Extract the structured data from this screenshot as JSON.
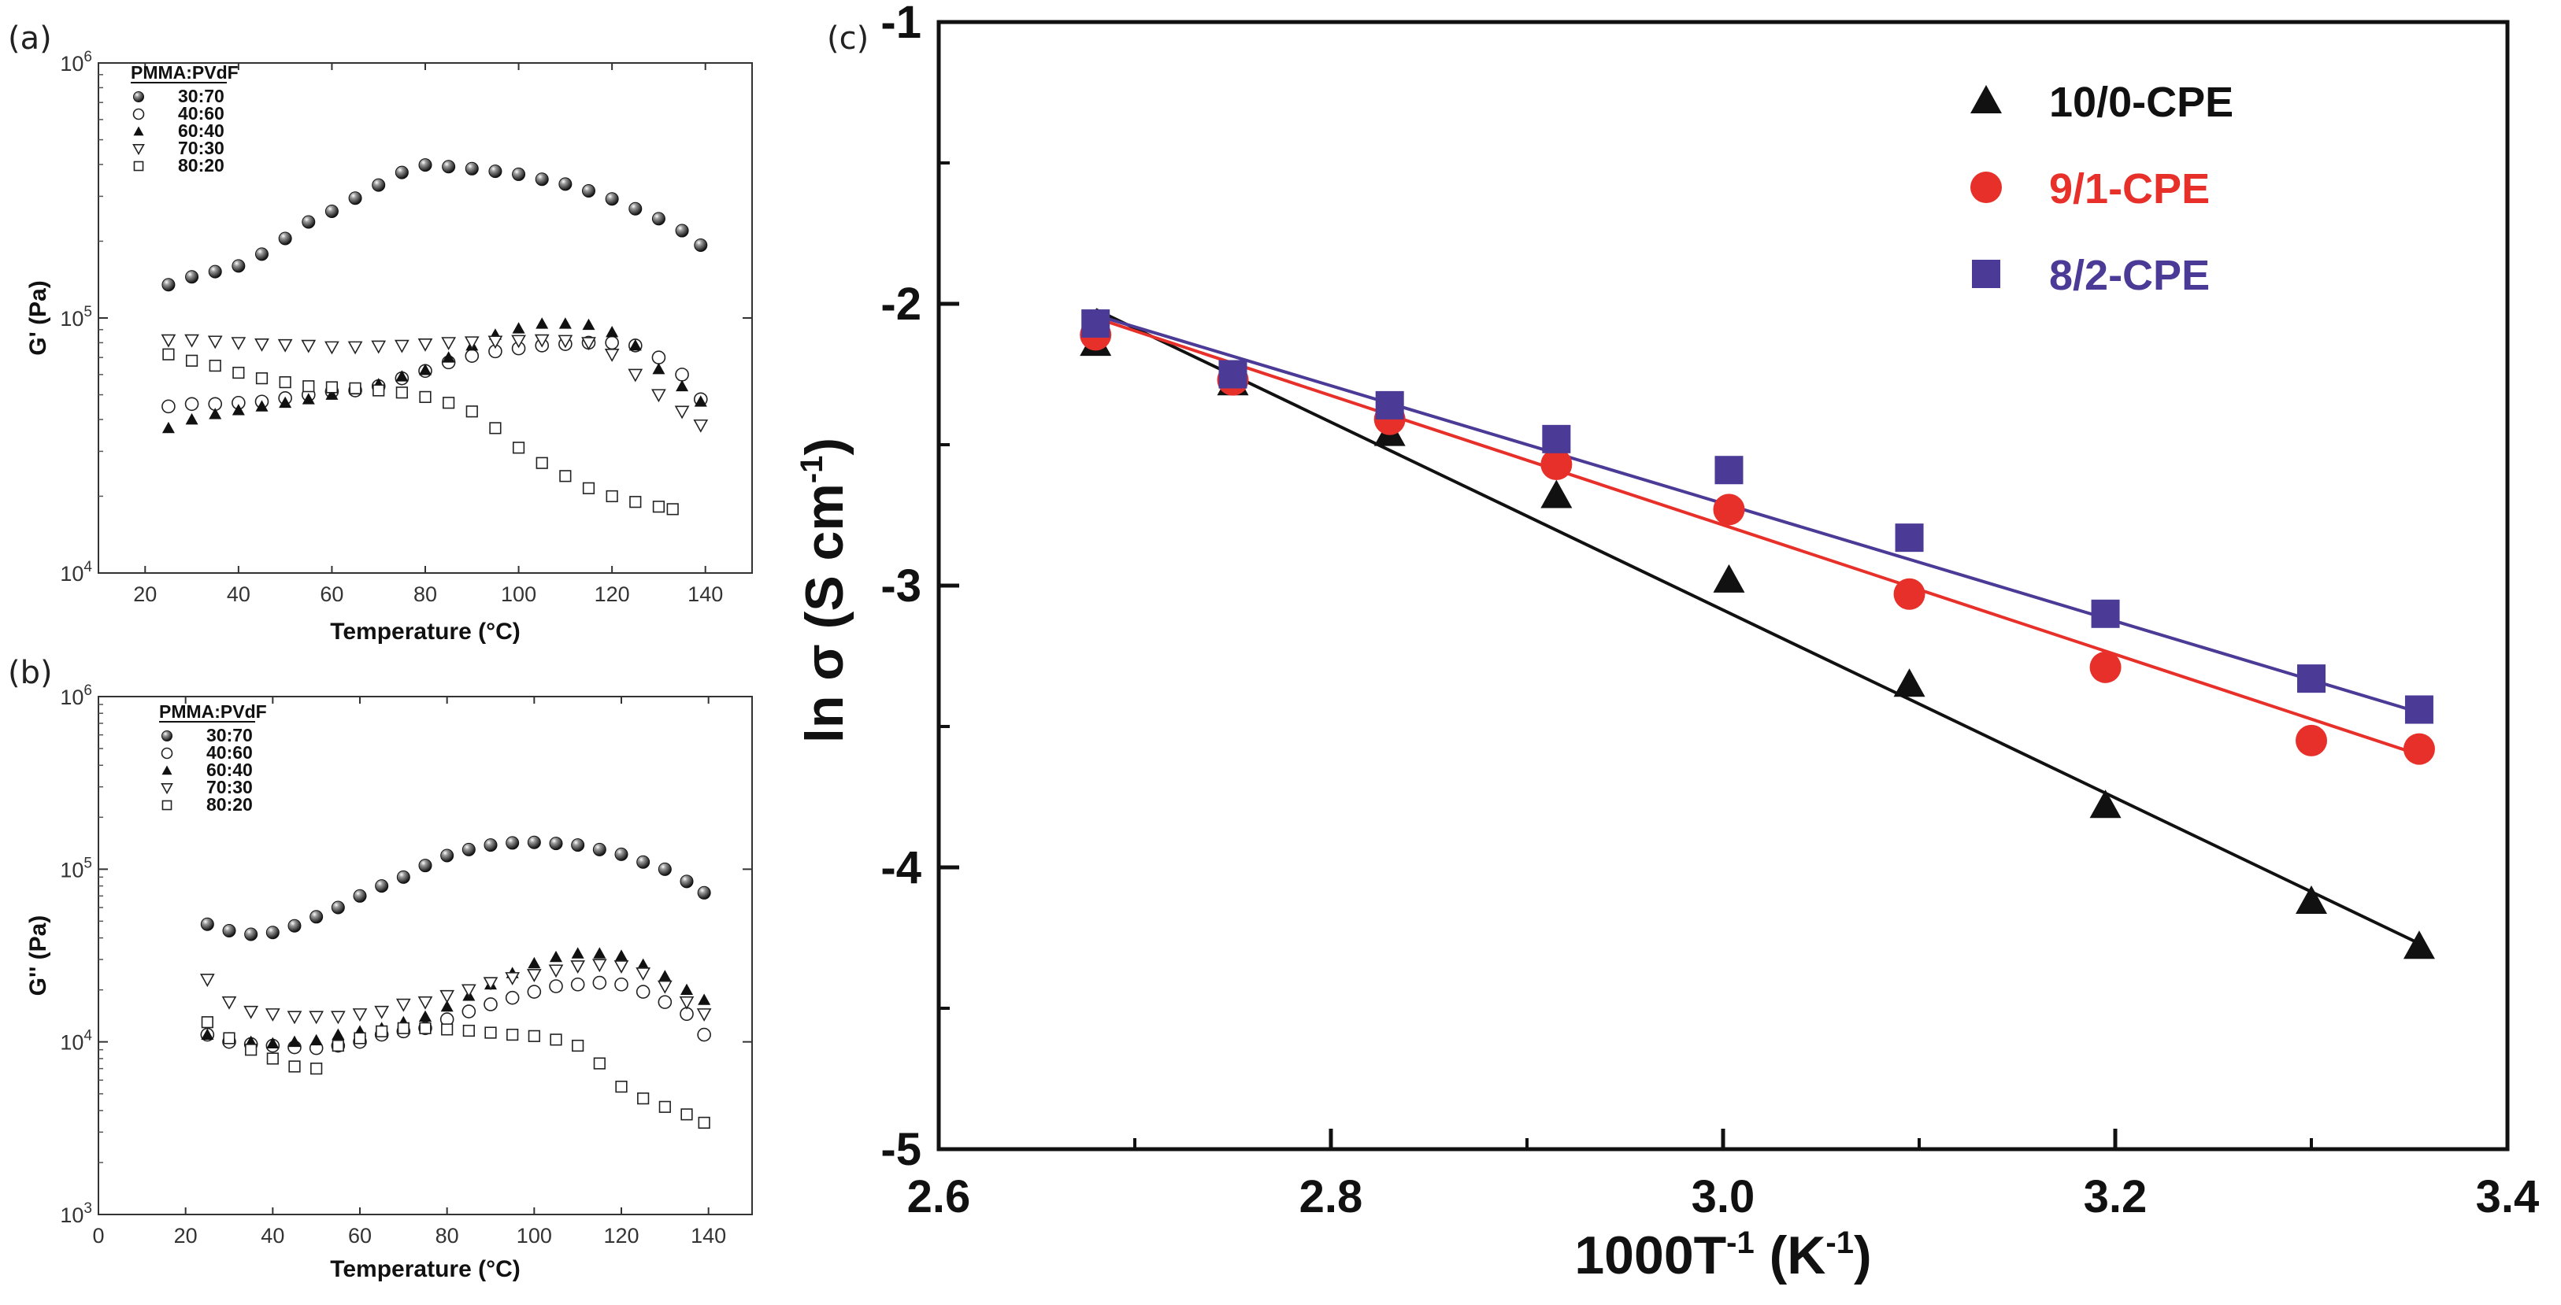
{
  "chart_data": [
    {
      "id": "a",
      "panel_label": "(a)",
      "type": "scatter",
      "ylog": true,
      "xlim": [
        10,
        150
      ],
      "ylim": [
        10000,
        1000000
      ],
      "xticks": [
        20,
        40,
        60,
        80,
        100,
        120,
        140
      ],
      "ytick_base": "10",
      "yticks": [
        {
          "value": 10000,
          "exp": "4"
        },
        {
          "value": 100000,
          "exp": "5"
        },
        {
          "value": 1000000,
          "exp": "6"
        }
      ],
      "xlabel": "Temperature  (°C)",
      "ylabel": "G' (Pa)",
      "legend_title": "PMMA:PVdF",
      "series": [
        {
          "name": "30:70",
          "marker": "sphere",
          "x": [
            25,
            30,
            35,
            40,
            45,
            50,
            55,
            60,
            65,
            70,
            75,
            80,
            85,
            90,
            95,
            100,
            105,
            110,
            115,
            120,
            125,
            130,
            135,
            139
          ],
          "y": [
            135000,
            145000,
            152000,
            160000,
            178000,
            205000,
            238000,
            262000,
            295000,
            332000,
            372000,
            398000,
            392000,
            385000,
            376000,
            366000,
            350000,
            335000,
            315000,
            293000,
            268000,
            245000,
            220000,
            193000
          ]
        },
        {
          "name": "40:60",
          "marker": "circle-open",
          "x": [
            25,
            30,
            35,
            40,
            45,
            50,
            55,
            60,
            65,
            70,
            75,
            80,
            85,
            90,
            95,
            100,
            105,
            110,
            115,
            120,
            125,
            130,
            135,
            139
          ],
          "y": [
            45000,
            46000,
            46000,
            46500,
            47000,
            48500,
            50000,
            51500,
            52000,
            54000,
            58000,
            62000,
            67000,
            71000,
            74000,
            76000,
            78000,
            79000,
            80000,
            80000,
            78000,
            70000,
            60000,
            48000
          ]
        },
        {
          "name": "60:40",
          "marker": "triangle-up-filled",
          "x": [
            25,
            30,
            35,
            40,
            45,
            50,
            55,
            60,
            65,
            70,
            75,
            80,
            85,
            90,
            95,
            100,
            105,
            110,
            115,
            120,
            125,
            130,
            135,
            139
          ],
          "y": [
            37000,
            40000,
            42000,
            43500,
            45000,
            46500,
            48000,
            50000,
            52500,
            55000,
            59000,
            62500,
            70000,
            78000,
            86000,
            91000,
            95000,
            95000,
            94000,
            88000,
            78000,
            63000,
            54000,
            47000
          ]
        },
        {
          "name": "70:30",
          "marker": "triangle-down-open",
          "x": [
            25,
            30,
            35,
            40,
            45,
            50,
            55,
            60,
            65,
            70,
            75,
            80,
            85,
            90,
            95,
            100,
            105,
            110,
            115,
            120,
            125,
            130,
            135,
            139
          ],
          "y": [
            82000,
            82000,
            81000,
            80000,
            79000,
            78500,
            78000,
            77000,
            77000,
            77500,
            78000,
            79000,
            80000,
            80500,
            81000,
            81500,
            82000,
            81500,
            80000,
            72000,
            60000,
            50000,
            43000,
            38000
          ]
        },
        {
          "name": "80:20",
          "marker": "square-open",
          "x": [
            25,
            30,
            35,
            40,
            45,
            50,
            55,
            60,
            65,
            70,
            75,
            80,
            85,
            90,
            95,
            100,
            105,
            110,
            115,
            120,
            125,
            130,
            133
          ],
          "y": [
            72000,
            68000,
            65000,
            61000,
            58000,
            56000,
            54000,
            53500,
            53000,
            52000,
            51000,
            49000,
            46500,
            43000,
            37000,
            31000,
            27000,
            24000,
            21500,
            20000,
            19000,
            18200,
            17800
          ]
        }
      ]
    },
    {
      "id": "b",
      "panel_label": "(b)",
      "type": "scatter",
      "ylog": true,
      "xlim": [
        0,
        150
      ],
      "ylim": [
        1000,
        1000000
      ],
      "xticks": [
        0,
        20,
        40,
        60,
        80,
        100,
        120,
        140
      ],
      "ytick_base": "10",
      "yticks": [
        {
          "value": 1000,
          "exp": "3"
        },
        {
          "value": 10000,
          "exp": "4"
        },
        {
          "value": 100000,
          "exp": "5"
        },
        {
          "value": 1000000,
          "exp": "6"
        }
      ],
      "xlabel": "Temperature  (°C)",
      "ylabel": "G'' (Pa)",
      "legend_title": "PMMA:PVdF",
      "series": [
        {
          "name": "30:70",
          "marker": "sphere",
          "x": [
            25,
            30,
            35,
            40,
            45,
            50,
            55,
            60,
            65,
            70,
            75,
            80,
            85,
            90,
            95,
            100,
            105,
            110,
            115,
            120,
            125,
            130,
            135,
            139
          ],
          "y": [
            48000,
            44000,
            42000,
            43000,
            47000,
            53000,
            60000,
            70000,
            80000,
            90000,
            105000,
            120000,
            130000,
            138000,
            142000,
            143000,
            141000,
            138000,
            130000,
            122000,
            110000,
            100000,
            85000,
            73000
          ]
        },
        {
          "name": "40:60",
          "marker": "circle-open",
          "x": [
            25,
            30,
            35,
            40,
            45,
            50,
            55,
            60,
            65,
            70,
            75,
            80,
            85,
            90,
            95,
            100,
            105,
            110,
            115,
            120,
            125,
            130,
            135,
            139
          ],
          "y": [
            11000,
            10000,
            9700,
            9500,
            9300,
            9200,
            9500,
            10000,
            11000,
            11500,
            12000,
            13500,
            15000,
            16500,
            18000,
            19500,
            21000,
            21500,
            22000,
            21500,
            19500,
            17000,
            14500,
            11000
          ]
        },
        {
          "name": "60:40",
          "marker": "triangle-up-filled",
          "x": [
            25,
            30,
            35,
            40,
            45,
            50,
            55,
            60,
            65,
            70,
            75,
            80,
            85,
            90,
            95,
            100,
            105,
            110,
            115,
            120,
            125,
            130,
            135,
            139
          ],
          "y": [
            11000,
            10500,
            10000,
            9800,
            10000,
            10200,
            11000,
            11500,
            12000,
            13000,
            14000,
            16000,
            18500,
            21500,
            25000,
            28500,
            31000,
            32500,
            32500,
            31500,
            28000,
            24000,
            20000,
            17500
          ]
        },
        {
          "name": "70:30",
          "marker": "triangle-down-open",
          "x": [
            25,
            30,
            35,
            40,
            45,
            50,
            55,
            60,
            65,
            70,
            75,
            80,
            85,
            90,
            95,
            100,
            105,
            110,
            115,
            120,
            125,
            130,
            135,
            139
          ],
          "y": [
            23000,
            17000,
            15000,
            14500,
            14000,
            14000,
            14000,
            14500,
            15000,
            16500,
            17000,
            18500,
            20000,
            22000,
            23500,
            24500,
            26000,
            27500,
            28000,
            27500,
            25000,
            21000,
            17000,
            14500
          ]
        },
        {
          "name": "80:20",
          "marker": "square-open",
          "x": [
            25,
            30,
            35,
            40,
            45,
            50,
            55,
            60,
            65,
            70,
            75,
            80,
            85,
            90,
            95,
            100,
            105,
            110,
            115,
            120,
            125,
            130,
            135,
            139
          ],
          "y": [
            13000,
            10500,
            9000,
            8000,
            7200,
            7000,
            9500,
            10500,
            11500,
            12000,
            12000,
            11800,
            11600,
            11300,
            11000,
            10800,
            10300,
            9500,
            7500,
            5500,
            4700,
            4200,
            3800,
            3400
          ]
        }
      ]
    },
    {
      "id": "c",
      "panel_label": "(c)",
      "type": "scatter",
      "ylog": false,
      "xlim": [
        2.6,
        3.4
      ],
      "ylim": [
        -5,
        -1
      ],
      "xticks": [
        2.6,
        2.8,
        3.0,
        3.2,
        3.4
      ],
      "xtick_labels": [
        "2.6",
        "2.8",
        "3.0",
        "3.2",
        "3.4"
      ],
      "yticks": [
        -5,
        -4,
        -3,
        -2,
        -1
      ],
      "ytick_labels": [
        "-5",
        "-4",
        "-3",
        "-2",
        "-1"
      ],
      "xlabel_main": "1000T",
      "xlabel_sup": "-1",
      "xlabel_units": " (K",
      "xlabel_units_sup": "-1",
      "xlabel_close": ")",
      "ylabel_main": "ln σ (S cm",
      "ylabel_sup": "-1",
      "ylabel_close": ")",
      "series": [
        {
          "name": "10/0-CPE",
          "marker": "triangle-up-filled",
          "color": "#111111",
          "x": [
            2.68,
            2.75,
            2.83,
            2.915,
            3.003,
            3.095,
            3.195,
            3.3,
            3.355
          ],
          "y": [
            -2.14,
            -2.28,
            -2.46,
            -2.68,
            -2.98,
            -3.35,
            -3.78,
            -4.12,
            -4.28
          ],
          "fit": [
            [
              2.68,
              -2.02
            ],
            [
              3.355,
              -4.27
            ]
          ]
        },
        {
          "name": "9/1-CPE",
          "marker": "circle-filled",
          "color": "#e8302a",
          "x": [
            2.68,
            2.75,
            2.83,
            2.915,
            3.003,
            3.095,
            3.195,
            3.3,
            3.355
          ],
          "y": [
            -2.11,
            -2.27,
            -2.41,
            -2.57,
            -2.73,
            -3.03,
            -3.29,
            -3.55,
            -3.58
          ],
          "fit": [
            [
              2.68,
              -2.05
            ],
            [
              3.355,
              -3.6
            ]
          ]
        },
        {
          "name": "8/2-CPE",
          "marker": "square-filled",
          "color": "#4b3a96",
          "x": [
            2.68,
            2.75,
            2.83,
            2.915,
            3.003,
            3.095,
            3.195,
            3.3,
            3.355
          ],
          "y": [
            -2.07,
            -2.25,
            -2.36,
            -2.48,
            -2.59,
            -2.83,
            -3.1,
            -3.33,
            -3.44
          ],
          "fit": [
            [
              2.68,
              -2.04
            ],
            [
              3.355,
              -3.45
            ]
          ]
        }
      ]
    }
  ]
}
